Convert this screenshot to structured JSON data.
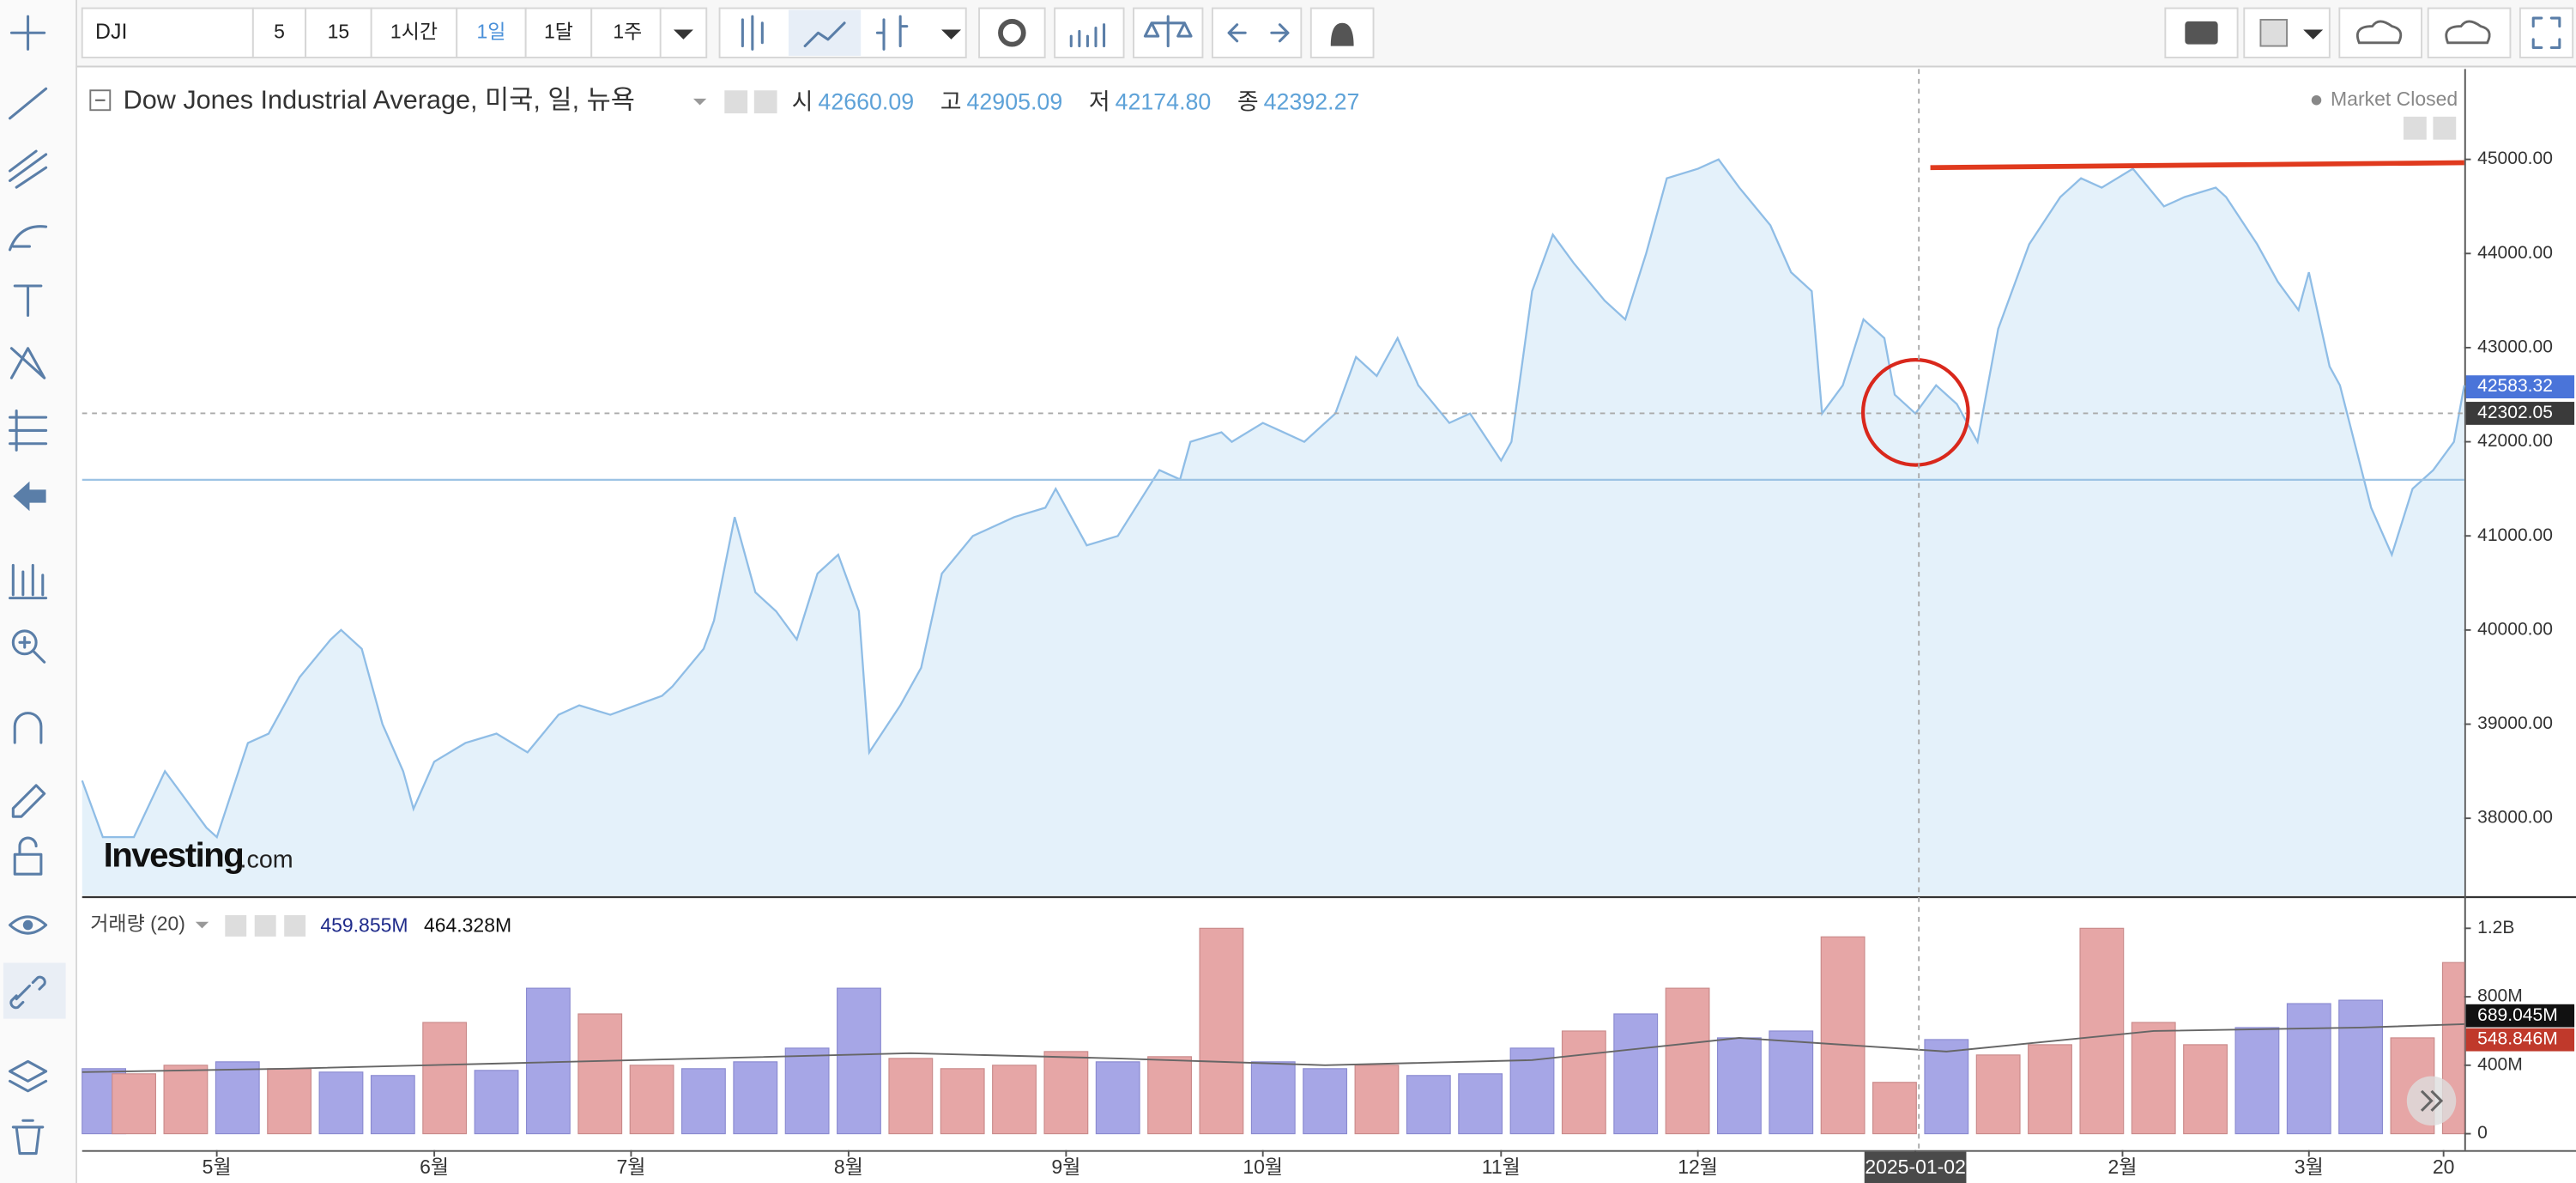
{
  "toolbar": {
    "symbol": "DJI",
    "intervals": [
      "5",
      "15",
      "1시간",
      "1일",
      "1달",
      "1주"
    ],
    "active_interval": 3
  },
  "legend": {
    "title": "Dow Jones Industrial Average, 미국, 일, 뉴욕",
    "ohlc": [
      {
        "label": "시",
        "value": "42660.09"
      },
      {
        "label": "고",
        "value": "42905.09"
      },
      {
        "label": "저",
        "value": "42174.80"
      },
      {
        "label": "종",
        "value": "42392.27"
      }
    ]
  },
  "status": "Market Closed",
  "logo": {
    "brand": "Investing",
    "suffix": ".com"
  },
  "volume_legend": {
    "title": "거래량 (20)",
    "ma_value": "459.855M",
    "volume_value": "464.328M"
  },
  "chart_data": [
    {
      "type": "area",
      "color": "#8fbde6",
      "fill": "#e4f1fa",
      "x": [
        0,
        2,
        5,
        8,
        12,
        13,
        16,
        18,
        20,
        21,
        24,
        25,
        27,
        29,
        31,
        32,
        34,
        37,
        40,
        43,
        46,
        48,
        51,
        56,
        57,
        60,
        61,
        63,
        65,
        67,
        69,
        71,
        73,
        75,
        76,
        79,
        81,
        83,
        86,
        90,
        93,
        94,
        97,
        100,
        104,
        106,
        107,
        110,
        111,
        114,
        116,
        118,
        121,
        123,
        125,
        127,
        129,
        132,
        134,
        137,
        138,
        140,
        142,
        144,
        147,
        149,
        151,
        153,
        156,
        158,
        160,
        163,
        165,
        167,
        168,
        170,
        172,
        174,
        175,
        177,
        179,
        181,
        183,
        185,
        188,
        191,
        193,
        195,
        198,
        201,
        203,
        206,
        207,
        210,
        212,
        214,
        215,
        217,
        218,
        221,
        223,
        225,
        227,
        229,
        230
      ],
      "values": [
        38400,
        37800,
        37800,
        38500,
        37900,
        37800,
        38800,
        38900,
        39300,
        39500,
        39900,
        40000,
        39800,
        39000,
        38500,
        38100,
        38600,
        38800,
        38900,
        38700,
        39100,
        39200,
        39100,
        39300,
        39400,
        39800,
        40100,
        41200,
        40400,
        40200,
        39900,
        40600,
        40800,
        40200,
        38700,
        39200,
        39600,
        40600,
        41000,
        41200,
        41300,
        41500,
        40900,
        41000,
        41700,
        41600,
        42000,
        42100,
        42000,
        42200,
        42100,
        42000,
        42300,
        42900,
        42700,
        43100,
        42600,
        42200,
        42300,
        41800,
        42000,
        43600,
        44200,
        43900,
        43500,
        43300,
        44000,
        44800,
        44900,
        45000,
        44700,
        44300,
        43800,
        43600,
        42300,
        42600,
        43300,
        43100,
        42500,
        42300,
        42600,
        42400,
        42000,
        43200,
        44100,
        44600,
        44800,
        44700,
        44900,
        44500,
        44600,
        44700,
        44600,
        44100,
        43700,
        43400,
        43800,
        42800,
        42600,
        41300,
        40800,
        41500,
        41700,
        42000,
        42600
      ],
      "xlim": [
        0,
        230
      ],
      "ylim": [
        37180,
        45960
      ],
      "yticks": [
        {
          "value": 38000,
          "label": "38000.00"
        },
        {
          "value": 39000,
          "label": "39000.00"
        },
        {
          "value": 40000,
          "label": "40000.00"
        },
        {
          "value": 41000,
          "label": "41000.00"
        },
        {
          "value": 42000,
          "label": "42000.00"
        },
        {
          "value": 43000,
          "label": "43000.00"
        },
        {
          "value": 44000,
          "label": "44000.00"
        },
        {
          "value": 45000,
          "label": "45000.00"
        }
      ],
      "xticks": [
        {
          "value": 13,
          "label": "5월"
        },
        {
          "value": 34,
          "label": "6월"
        },
        {
          "value": 53,
          "label": "7월"
        },
        {
          "value": 74,
          "label": "8월"
        },
        {
          "value": 95,
          "label": "9월"
        },
        {
          "value": 114,
          "label": "10월"
        },
        {
          "value": 137,
          "label": "11월"
        },
        {
          "value": 156,
          "label": "12월"
        },
        {
          "value": 177,
          "label": "2025-01-02",
          "highlight": true
        },
        {
          "value": 197,
          "label": "2월"
        },
        {
          "value": 215,
          "label": "3월"
        },
        {
          "value": 228,
          "label": "20"
        }
      ],
      "price_labels": [
        {
          "value": 42583.32,
          "label": "42583.32",
          "color": "#4a74d9"
        },
        {
          "value": 42302.05,
          "label": "42302.05",
          "color": "#3a3a3a",
          "line": true
        }
      ]
    },
    {
      "type": "bar",
      "x": [
        0,
        5,
        10,
        15,
        20,
        25,
        30,
        35,
        40,
        45,
        50,
        55,
        60,
        65,
        70,
        75,
        80,
        85,
        90,
        95,
        100,
        105,
        110,
        115,
        120,
        125,
        130,
        135,
        140,
        145,
        150,
        155,
        160,
        165,
        170,
        175,
        180,
        185,
        190,
        195,
        200,
        205,
        210,
        215,
        220,
        225,
        230
      ],
      "values": [
        380000000,
        350000000,
        400000000,
        420000000,
        380000000,
        360000000,
        340000000,
        650000000,
        370000000,
        850000000,
        700000000,
        400000000,
        380000000,
        420000000,
        500000000,
        850000000,
        440000000,
        380000000,
        400000000,
        480000000,
        420000000,
        450000000,
        1200000000,
        420000000,
        380000000,
        400000000,
        340000000,
        350000000,
        500000000,
        600000000,
        700000000,
        850000000,
        560000000,
        600000000,
        1150000000,
        300000000,
        550000000,
        460000000,
        520000000,
        1200000000,
        650000000,
        520000000,
        620000000,
        760000000,
        780000000,
        560000000,
        1000000000
      ],
      "colors": [
        "#a6a6e6",
        "#e6a6a6",
        "#e6a6a6",
        "#a6a6e6",
        "#e6a6a6",
        "#a6a6e6",
        "#a6a6e6",
        "#e6a6a6",
        "#a6a6e6",
        "#a6a6e6",
        "#e6a6a6",
        "#e6a6a6",
        "#a6a6e6",
        "#a6a6e6",
        "#a6a6e6",
        "#a6a6e6",
        "#e6a6a6",
        "#e6a6a6",
        "#e6a6a6",
        "#e6a6a6",
        "#a6a6e6",
        "#e6a6a6",
        "#e6a6a6",
        "#a6a6e6",
        "#a6a6e6",
        "#e6a6a6",
        "#a6a6e6",
        "#a6a6e6",
        "#a6a6e6",
        "#e6a6a6",
        "#a6a6e6",
        "#e6a6a6",
        "#a6a6e6",
        "#a6a6e6",
        "#e6a6a6",
        "#e6a6a6",
        "#a6a6e6",
        "#e6a6a6",
        "#e6a6a6",
        "#e6a6a6",
        "#e6a6a6",
        "#e6a6a6",
        "#a6a6e6",
        "#a6a6e6",
        "#a6a6e6",
        "#e6a6a6",
        "#e6a6a6"
      ],
      "ma": {
        "color": "#666666",
        "x": [
          0,
          20,
          40,
          60,
          80,
          100,
          120,
          140,
          160,
          180,
          200,
          220,
          230
        ],
        "values": [
          360000000,
          380000000,
          410000000,
          440000000,
          470000000,
          440000000,
          400000000,
          430000000,
          560000000,
          480000000,
          600000000,
          620000000,
          640000000
        ]
      },
      "xlim": [
        0,
        230
      ],
      "ylim": [
        0,
        1363000000
      ],
      "yticks": [
        0,
        {
          "value": 400000000,
          "label": "400M"
        },
        {
          "value": 800000000,
          "label": "800M"
        },
        {
          "value": 1200000000,
          "label": "1.2B"
        }
      ],
      "price_labels": [
        {
          "value": 689045000,
          "label": "689.045M",
          "color": "#111111"
        },
        {
          "value": 548846000,
          "label": "548.846M",
          "color": "#c0392b"
        }
      ]
    }
  ]
}
